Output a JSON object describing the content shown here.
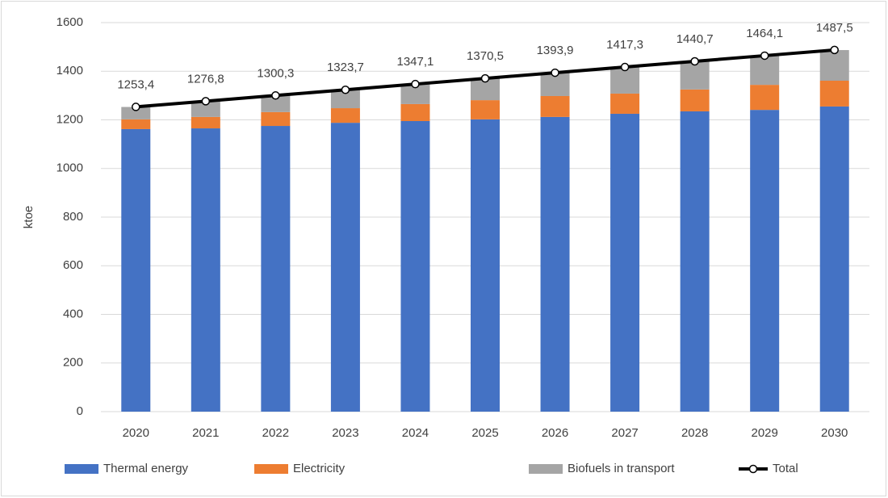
{
  "chart_data": {
    "type": "bar",
    "stacked": true,
    "categories": [
      "2020",
      "2021",
      "2022",
      "2023",
      "2024",
      "2025",
      "2026",
      "2027",
      "2028",
      "2029",
      "2030"
    ],
    "ylabel": "ktoe",
    "ylim": [
      0,
      1600
    ],
    "yticks": [
      0,
      200,
      400,
      600,
      800,
      1000,
      1200,
      1400,
      1600
    ],
    "grid": true,
    "legend": "bottom",
    "series": [
      {
        "name": "Thermal energy",
        "color": "#4472c4",
        "values": [
          1162,
          1165,
          1175,
          1188,
          1195,
          1202,
          1212,
          1225,
          1235,
          1241,
          1255
        ]
      },
      {
        "name": "Electricity",
        "color": "#ed7d31",
        "values": [
          40,
          47,
          57,
          60,
          70,
          79,
          86,
          83,
          90,
          103,
          106
        ]
      },
      {
        "name": "Biofuels in transport",
        "color": "#a5a5a5",
        "values": [
          51,
          65,
          68,
          76,
          82,
          89,
          96,
          109,
          116,
          120,
          126
        ]
      },
      {
        "name": "Total",
        "type": "line",
        "color": "#000000",
        "values": [
          1253.4,
          1276.8,
          1300.3,
          1323.7,
          1347.1,
          1370.5,
          1393.9,
          1417.3,
          1440.7,
          1464.1,
          1487.5
        ],
        "value_labels": [
          "1253,4",
          "1276,8",
          "1300,3",
          "1323,7",
          "1347,1",
          "1370,5",
          "1393,9",
          "1417,3",
          "1440,7",
          "1464,1",
          "1487,5"
        ]
      }
    ]
  }
}
